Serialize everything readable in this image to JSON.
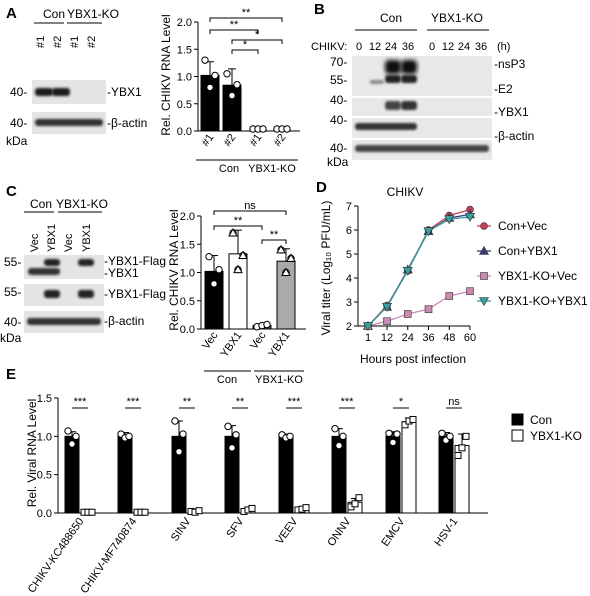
{
  "panels": {
    "A": {
      "label": "A",
      "blot": {
        "group_labels": [
          "Con",
          "YBX1-KO"
        ],
        "lane_labels": [
          "#1",
          "#2",
          "#1",
          "#2"
        ],
        "mw_markers": [
          "40-",
          "40-"
        ],
        "band_labels": [
          "-YBX1",
          "-β-actin"
        ],
        "kda": "kDa"
      },
      "chart": {
        "ylabel": "Rel. CHIKV RNA Level",
        "yticks": [
          "0.0",
          "0.5",
          "1.0",
          "1.5",
          "2.0"
        ],
        "xticks": [
          "#1",
          "#2",
          "#1",
          "#2"
        ],
        "groups": [
          "Con",
          "YBX1-KO"
        ],
        "sig": [
          "**",
          "**",
          "*",
          "*"
        ]
      }
    },
    "B": {
      "label": "B",
      "group_labels": [
        "Con",
        "YBX1-KO"
      ],
      "chikv_label": "CHIKV:",
      "timepoints": [
        "0",
        "12",
        "24",
        "36",
        "0",
        "12",
        "24",
        "36"
      ],
      "unit": "(h)",
      "mw_markers": [
        "70-",
        "55-",
        "40-",
        "40-",
        "40-"
      ],
      "band_labels": [
        "-nsP3",
        "-E2",
        "-YBX1",
        "-β-actin"
      ],
      "kda": "kDa"
    },
    "C": {
      "label": "C",
      "blot": {
        "group_labels": [
          "Con",
          "YBX1-KO"
        ],
        "lane_labels": [
          "Vec",
          "YBX1",
          "Vec",
          "YBX1"
        ],
        "mw_markers": [
          "55-",
          "55-",
          "40-"
        ],
        "band_labels": [
          "-YBX1-Flag",
          "-YBX1",
          "-YBX1-Flag",
          "-β-actin"
        ],
        "kda": "kDa"
      },
      "chart": {
        "ylabel": "Rel. CHIKV RNA Level",
        "yticks": [
          "0.0",
          "0.5",
          "1.0",
          "1.5",
          "2.0"
        ],
        "xticks": [
          "Vec",
          "YBX1",
          "Vec",
          "YBX1"
        ],
        "groups": [
          "Con",
          "YBX1-KO"
        ],
        "sig": [
          "ns",
          "**",
          "**"
        ]
      }
    },
    "D": {
      "label": "D",
      "title": "CHIKV",
      "ylabel": "Viral titer (Log₁₀ PFU/mL)",
      "xlabel": "Hours post infection",
      "yticks": [
        "2",
        "3",
        "4",
        "5",
        "6",
        "7"
      ],
      "xticks": [
        "1",
        "12",
        "24",
        "36",
        "48",
        "60"
      ],
      "legend": [
        "Con+Vec",
        "Con+YBX1",
        "YBX1-KO+Vec",
        "YBX1-KO+YBX1"
      ]
    },
    "E": {
      "label": "E",
      "ylabel": "Rel. Viral RNA Level",
      "yticks": [
        "0.0",
        "0.5",
        "1.0",
        "1.5"
      ],
      "sig": [
        "***",
        "***",
        "**",
        "**",
        "***",
        "***",
        "*",
        "ns"
      ],
      "legend": [
        "Con",
        "YBX1-KO"
      ]
    }
  },
  "chart_data": [
    {
      "panel": "A",
      "type": "bar",
      "categories": [
        "Con #1",
        "Con #2",
        "YBX1-KO #1",
        "YBX1-KO #2"
      ],
      "values": [
        1.02,
        0.84,
        0.0,
        0.0
      ],
      "errors": [
        0.25,
        0.3,
        0.0,
        0.0
      ],
      "points": [
        [
          1.3,
          0.8,
          1.02
        ],
        [
          1.05,
          0.65,
          0.85
        ],
        [
          0.0,
          0.0,
          0.0
        ],
        [
          0.0,
          0.0,
          0.0
        ]
      ],
      "ylabel": "Rel. CHIKV RNA Level",
      "ylim": [
        0,
        2.0
      ],
      "colors": [
        "#000000",
        "#000000",
        "#ffffff",
        "#ffffff"
      ]
    },
    {
      "panel": "C",
      "type": "bar",
      "categories": [
        "Con Vec",
        "Con YBX1",
        "YBX1-KO Vec",
        "YBX1-KO YBX1"
      ],
      "values": [
        1.02,
        1.33,
        0.06,
        1.2
      ],
      "errors": [
        0.28,
        0.42,
        0.03,
        0.22
      ],
      "points": [
        [
          1.28,
          0.8,
          1.05
        ],
        [
          1.7,
          1.05,
          1.3
        ],
        [
          0.04,
          0.06,
          0.08
        ],
        [
          1.4,
          1.0,
          1.25
        ]
      ],
      "ylabel": "Rel. CHIKV RNA Level",
      "ylim": [
        0,
        2.0
      ],
      "colors": [
        "#000000",
        "#ffffff",
        "#555555",
        "#aaaaaa"
      ]
    },
    {
      "panel": "D",
      "type": "line",
      "title": "CHIKV",
      "x": [
        1,
        12,
        24,
        36,
        48,
        60
      ],
      "series": [
        {
          "name": "Con+Vec",
          "values": [
            2.0,
            2.85,
            4.3,
            6.0,
            6.6,
            6.85
          ],
          "color": "#c0405a"
        },
        {
          "name": "Con+YBX1",
          "values": [
            2.0,
            2.8,
            4.35,
            5.95,
            6.5,
            6.65
          ],
          "color": "#3a3a7a"
        },
        {
          "name": "YBX1-KO+Vec",
          "values": [
            2.0,
            2.2,
            2.5,
            2.7,
            3.25,
            3.45
          ],
          "color": "#c88ab0"
        },
        {
          "name": "YBX1-KO+YBX1",
          "values": [
            2.0,
            2.8,
            4.3,
            5.95,
            6.45,
            6.55
          ],
          "color": "#3aa0a0"
        }
      ],
      "xlabel": "Hours post infection",
      "ylabel": "Viral titer (Log₁₀ PFU/mL)",
      "ylim": [
        2,
        7
      ],
      "xlim": [
        1,
        60
      ]
    },
    {
      "panel": "E",
      "type": "bar",
      "categories": [
        "CHIKV-KC488650",
        "CHIKV-MF740874",
        "SINV",
        "SFV",
        "VEEV",
        "ONNV",
        "EMCV",
        "HSV-1"
      ],
      "series": [
        {
          "name": "Con",
          "values": [
            1.0,
            1.0,
            1.0,
            1.0,
            1.0,
            1.0,
            1.0,
            1.0
          ],
          "errors": [
            0.06,
            0.05,
            0.2,
            0.14,
            0.03,
            0.1,
            0.06,
            0.05
          ],
          "color": "#000000"
        },
        {
          "name": "YBX1-KO",
          "values": [
            0.01,
            0.01,
            0.02,
            0.04,
            0.05,
            0.14,
            1.19,
            0.88
          ],
          "errors": [
            0.0,
            0.0,
            0.01,
            0.02,
            0.02,
            0.05,
            0.05,
            0.15
          ],
          "color": "#ffffff"
        }
      ],
      "points_con": [
        [
          1.07,
          0.9,
          1.0
        ],
        [
          1.03,
          0.98,
          1.0
        ],
        [
          1.2,
          0.8,
          1.03
        ],
        [
          1.13,
          0.85,
          1.02
        ],
        [
          1.02,
          0.98,
          1.0
        ],
        [
          1.1,
          0.88,
          1.0
        ],
        [
          1.04,
          0.92,
          1.03
        ],
        [
          1.04,
          0.95,
          1.0
        ]
      ],
      "points_ko": [
        [
          0.01,
          0.01,
          0.01
        ],
        [
          0.01,
          0.01,
          0.01
        ],
        [
          0.02,
          0.01,
          0.03
        ],
        [
          0.02,
          0.04,
          0.06
        ],
        [
          0.04,
          0.05,
          0.07
        ],
        [
          0.08,
          0.12,
          0.2
        ],
        [
          1.15,
          1.2,
          1.22
        ],
        [
          0.75,
          0.85,
          1.0
        ]
      ],
      "ylabel": "Rel. Viral RNA Level",
      "ylim": [
        0,
        1.5
      ],
      "legend": "right"
    }
  ]
}
